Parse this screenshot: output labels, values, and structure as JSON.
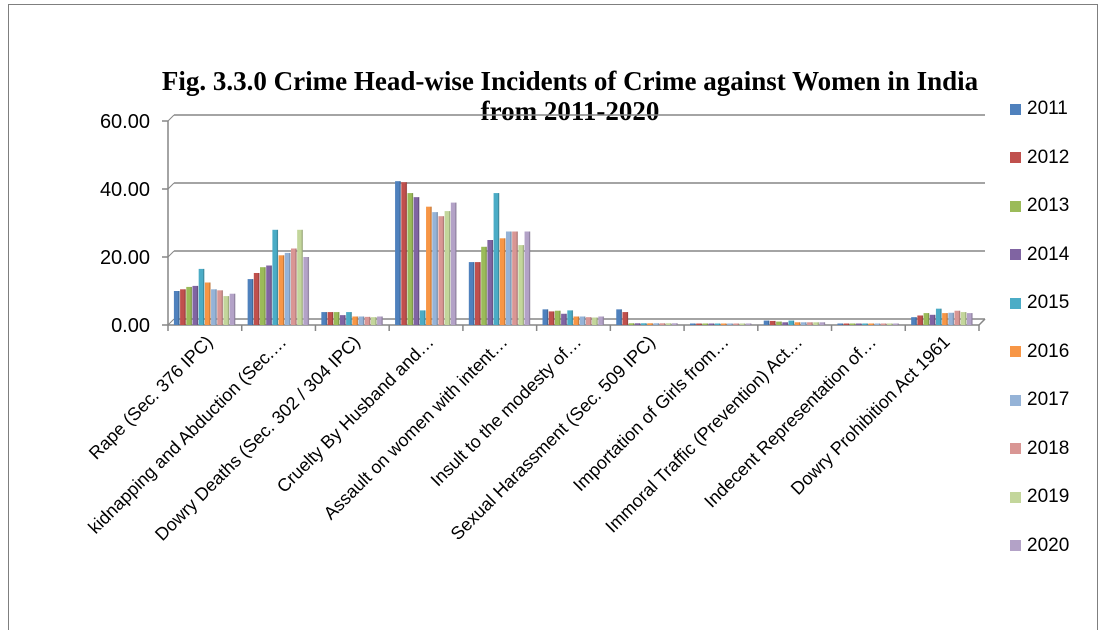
{
  "chart_data": {
    "type": "bar",
    "title_line1": "Fig. 3.3.0 Crime Head-wise Incidents of Crime against Women in India",
    "title_line2": "from 2011-2020",
    "xlabel": "",
    "ylabel": "",
    "ylim": [
      0,
      60
    ],
    "yticks": [
      "0.00",
      "20.00",
      "40.00",
      "60.00"
    ],
    "grid": true,
    "legend_position": "right",
    "categories": [
      "Rape (Sec. 376 IPC)",
      "kidnapping and Abduction (Sec.…",
      "Dowry Deaths (Sec. 302 / 304 IPC)",
      "Cruelty By Husband and…",
      "Assault on women with intent…",
      "Insult to the modesty of…",
      "Sexual Harassment (Sec. 509 IPC)",
      "Importation of Girls from…",
      "Immoral Traffic (Prevention) Act…",
      "Indecent Representation of…",
      "Dowry Prohibition Act 1961"
    ],
    "series": [
      {
        "name": "2011",
        "color": "#4f81bd",
        "values": [
          10.0,
          13.5,
          3.8,
          42.3,
          18.5,
          4.6,
          4.6,
          0.1,
          1.3,
          0.2,
          2.3
        ]
      },
      {
        "name": "2012",
        "color": "#c0504d",
        "values": [
          10.5,
          15.3,
          3.8,
          42.0,
          18.5,
          4.0,
          3.8,
          0.1,
          1.2,
          0.2,
          2.8
        ]
      },
      {
        "name": "2013",
        "color": "#9bbb59",
        "values": [
          11.2,
          17.0,
          3.8,
          38.8,
          23.0,
          4.2,
          0.5,
          0.1,
          1.0,
          0.2,
          3.5
        ]
      },
      {
        "name": "2014",
        "color": "#8064a2",
        "values": [
          11.5,
          17.5,
          2.9,
          37.6,
          25.0,
          3.3,
          0.5,
          0.1,
          0.8,
          0.1,
          3.0
        ]
      },
      {
        "name": "2015",
        "color": "#4bacc6",
        "values": [
          16.5,
          28.0,
          3.8,
          4.3,
          38.8,
          4.3,
          0.5,
          0.1,
          1.3,
          0.1,
          4.8
        ]
      },
      {
        "name": "2016",
        "color": "#f79646",
        "values": [
          12.5,
          20.5,
          2.5,
          34.8,
          25.5,
          2.5,
          0.5,
          0.1,
          0.8,
          0.1,
          3.5
        ]
      },
      {
        "name": "2017",
        "color": "#95b3d7",
        "values": [
          10.5,
          21.2,
          2.5,
          33.2,
          27.5,
          2.5,
          0.5,
          0.1,
          0.8,
          0.1,
          3.6
        ]
      },
      {
        "name": "2018",
        "color": "#d99694",
        "values": [
          10.2,
          22.5,
          2.4,
          32.0,
          27.5,
          2.3,
          0.5,
          0.1,
          0.8,
          0.1,
          4.2
        ]
      },
      {
        "name": "2019",
        "color": "#c3d69b",
        "values": [
          8.5,
          28.0,
          2.3,
          33.5,
          23.5,
          2.2,
          0.5,
          0.1,
          0.8,
          0.1,
          3.8
        ]
      },
      {
        "name": "2020",
        "color": "#b3a2c7",
        "values": [
          9.2,
          20.0,
          2.5,
          36.0,
          27.5,
          2.5,
          0.5,
          0.1,
          0.8,
          0.1,
          3.5
        ]
      }
    ]
  }
}
